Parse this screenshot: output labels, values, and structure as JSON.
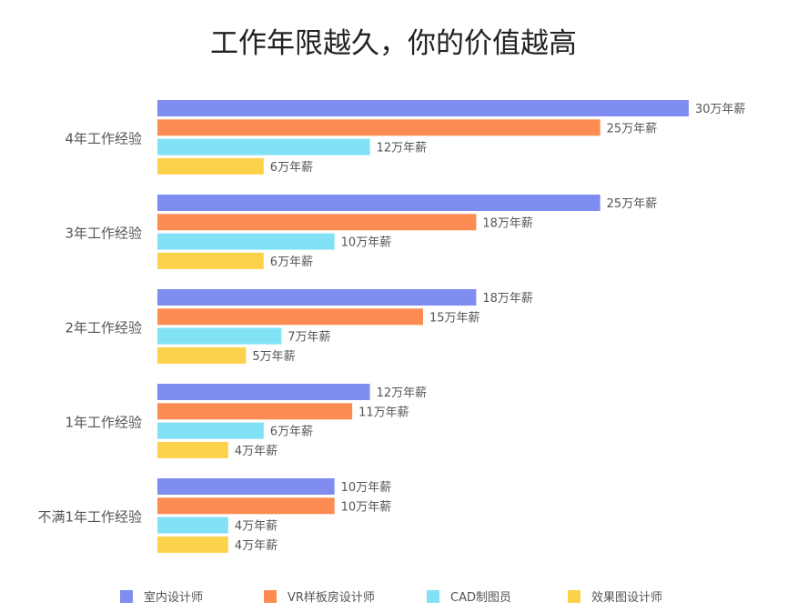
{
  "chart_data": {
    "type": "bar",
    "orientation": "horizontal",
    "title": "工作年限越久，你的价值越高",
    "categories": [
      "4年工作经验",
      "3年工作经验",
      "2年工作经验",
      "1年工作经验",
      "不满1年工作经验"
    ],
    "series": [
      {
        "name": "室内设计师",
        "color": "#7f8df0",
        "values": [
          30,
          25,
          18,
          12,
          10
        ],
        "labels": [
          "30万年薪",
          "25万年薪",
          "18万年薪",
          "12万年薪",
          "10万年薪"
        ]
      },
      {
        "name": "VR样板房设计师",
        "color": "#fd8c52",
        "values": [
          25,
          18,
          15,
          11,
          10
        ],
        "labels": [
          "25万年薪",
          "18万年薪",
          "15万年薪",
          "11万年薪",
          "10万年薪"
        ]
      },
      {
        "name": "CAD制图员",
        "color": "#82e2f5",
        "values": [
          12,
          10,
          7,
          6,
          4
        ],
        "labels": [
          "12万年薪",
          "10万年薪",
          "7万年薪",
          "6万年薪",
          "4万年薪"
        ]
      },
      {
        "name": "效果图设计师",
        "color": "#fdd24b",
        "values": [
          6,
          6,
          5,
          4,
          4
        ],
        "labels": [
          "6万年薪",
          "6万年薪",
          "5万年薪",
          "4万年薪",
          "4万年薪"
        ]
      }
    ],
    "xlim": [
      0,
      30
    ],
    "grid": false,
    "legend": "bottom"
  }
}
